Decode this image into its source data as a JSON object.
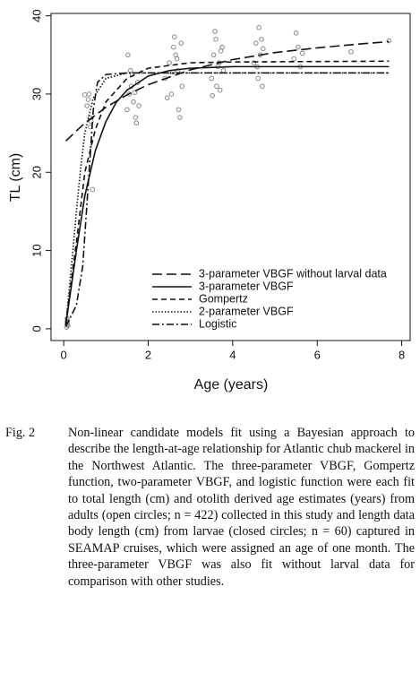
{
  "chart_data": {
    "type": "line",
    "xlabel": "Age (years)",
    "ylabel": "TL (cm)",
    "xlim": [
      -0.3,
      8.2
    ],
    "ylim": [
      -1.5,
      40.3
    ],
    "xticks": [
      0,
      2,
      4,
      6,
      8
    ],
    "yticks": [
      0,
      10,
      20,
      30,
      40
    ],
    "legend": "lower right",
    "scatter": {
      "color": "#888888",
      "x": [
        0.07,
        0.08,
        0.08,
        0.09,
        0.1,
        0.08,
        0.55,
        0.6,
        0.62,
        0.65,
        0.68,
        0.58,
        0.5,
        0.63,
        1.5,
        1.55,
        1.6,
        1.62,
        1.65,
        1.7,
        1.72,
        1.75,
        1.58,
        1.52,
        1.68,
        1.78,
        2.4,
        2.5,
        2.55,
        2.6,
        2.65,
        2.7,
        2.72,
        2.75,
        2.8,
        2.62,
        2.58,
        2.45,
        2.68,
        2.78,
        3.5,
        3.55,
        3.6,
        3.62,
        3.65,
        3.7,
        3.75,
        3.58,
        3.68,
        3.78,
        3.52,
        3.72,
        4.5,
        4.55,
        4.6,
        4.62,
        4.65,
        4.7,
        4.68,
        4.58,
        4.72,
        5.45,
        5.5,
        5.55,
        5.6,
        5.65,
        6.8,
        7.7
      ],
      "y": [
        0.2,
        0.5,
        0.8,
        1.0,
        0.4,
        1.3,
        28.5,
        30,
        27,
        26.5,
        17.8,
        29.3,
        29.9,
        25.8,
        28,
        30,
        31,
        32.5,
        29,
        27,
        26.3,
        31.5,
        33,
        35,
        30.2,
        28.5,
        32,
        34,
        30,
        36,
        35,
        33,
        28,
        27,
        31,
        37.3,
        32.8,
        29.5,
        34.5,
        36.5,
        32,
        35,
        37,
        31,
        33.5,
        30.5,
        36,
        38,
        34,
        33,
        29.8,
        35.5,
        34,
        36.5,
        32,
        38.5,
        35,
        31,
        37,
        33.5,
        35.8,
        34.5,
        37.8,
        36,
        33.5,
        35.2,
        35.4,
        36.8
      ]
    },
    "series": [
      {
        "name": "3-parameter VBGF without larval data",
        "color": "#111111",
        "dash": "11,5",
        "x": [
          0.05,
          0.5,
          1,
          1.5,
          2,
          3,
          4,
          5,
          6,
          7,
          7.7
        ],
        "values": [
          24,
          26.3,
          28.3,
          29.9,
          31.2,
          33.1,
          34.4,
          35.3,
          35.9,
          36.4,
          36.7
        ]
      },
      {
        "name": "3-parameter VBGF",
        "color": "#111111",
        "dash": "none",
        "x": [
          0.05,
          0.3,
          0.5,
          0.75,
          1,
          1.25,
          1.5,
          2,
          2.5,
          3,
          4,
          7.7
        ],
        "values": [
          0.5,
          10,
          17,
          22.8,
          26.5,
          29,
          30.5,
          32.3,
          33,
          33.3,
          33.5,
          33.5
        ]
      },
      {
        "name": "Gompertz",
        "color": "#111111",
        "dash": "6,4",
        "x": [
          0.05,
          0.3,
          0.5,
          0.75,
          1,
          1.5,
          2,
          3,
          4,
          7.7
        ],
        "values": [
          0.8,
          11,
          20,
          25.5,
          29,
          32,
          33.3,
          34,
          34.1,
          34.2
        ]
      },
      {
        "name": "2-parameter VBGF",
        "color": "#111111",
        "dash": "1.5,2",
        "x": [
          0.05,
          0.2,
          0.3,
          0.4,
          0.5,
          0.7,
          1,
          1.5,
          7.7
        ],
        "values": [
          0.5,
          9,
          15,
          20.5,
          25,
          29.5,
          32,
          32.7,
          32.7
        ]
      },
      {
        "name": "Logistic",
        "color": "#111111",
        "dash": "8,3,2,3",
        "x": [
          0.05,
          0.3,
          0.45,
          0.6,
          0.7,
          0.8,
          1,
          1.5,
          7.7
        ],
        "values": [
          0.3,
          3,
          8,
          20,
          28,
          31.5,
          32.5,
          32.7,
          32.7
        ]
      }
    ]
  },
  "caption": {
    "label": "Fig. 2",
    "text": "Non-linear candidate models fit using a Bayesian approach to describe the length-at-age relationship for Atlantic chub mackerel in the Northwest Atlantic. The three-parameter VBGF, Gompertz function, two-parameter VBGF, and logistic function were each fit to total length (cm) and otolith derived age estimates (years) from adults (open circles; n = 422) collected in this study and length data body length (cm) from larvae (closed circles; n = 60) captured in SEAMAP cruises, which were assigned an age of one month. The three-parameter VBGF was also fit without larval data for comparison with other studies."
  }
}
